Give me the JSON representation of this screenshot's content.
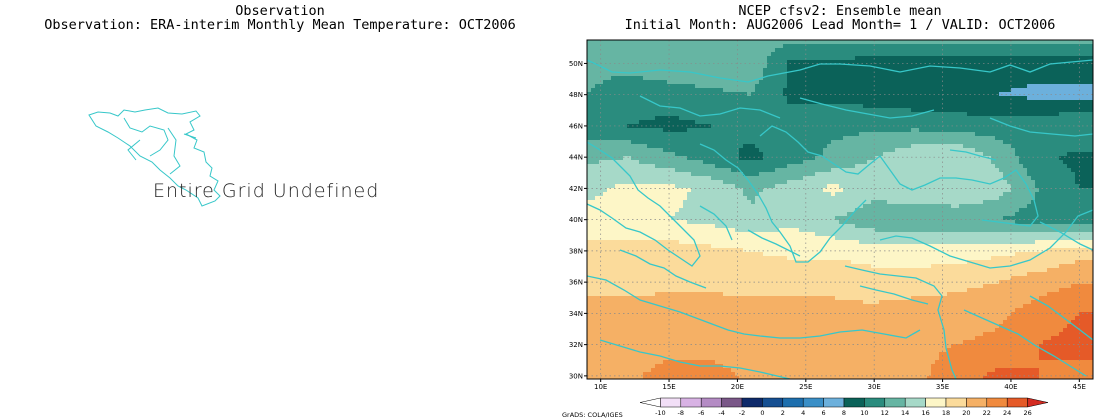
{
  "left_panel": {
    "title_line1": "Observation",
    "title_line2": "Observation: ERA-interim Monthly Mean Temperature: OCT2006",
    "message": "Entire Grid Undefined"
  },
  "right_panel": {
    "title_line1": "NCEP cfsv2: Ensemble mean",
    "title_line2": "Initial Month: AUG2006  Lead Month= 1 / VALID: OCT2006"
  },
  "credit": "GrADS: COLA/IGES",
  "colors": {
    "coastline": "#37c7c9",
    "frame": "#000000"
  },
  "chart_data": {
    "type": "heatmap",
    "title": "NCEP cfsv2: Ensemble mean",
    "subtitle": "Initial Month: AUG2006  Lead Month= 1 / VALID: OCT2006",
    "x_ticks": [
      "10E",
      "15E",
      "20E",
      "25E",
      "30E",
      "35E",
      "40E",
      "45E"
    ],
    "y_ticks": [
      "30N",
      "32N",
      "34N",
      "36N",
      "38N",
      "40N",
      "42N",
      "44N",
      "46N",
      "48N",
      "50N"
    ],
    "xlim": [
      9,
      46
    ],
    "ylim": [
      29.8,
      51.5
    ],
    "grid": true,
    "colorbar": {
      "levels": [
        "-10",
        "-8",
        "-6",
        "-4",
        "-2",
        "0",
        "2",
        "4",
        "6",
        "8",
        "10",
        "12",
        "14",
        "16",
        "18",
        "20",
        "22",
        "24",
        "26"
      ],
      "colors": [
        "#ffffff",
        "#f2dff7",
        "#d8b2e4",
        "#b48bc4",
        "#7a5788",
        "#0e2a6b",
        "#154f92",
        "#1d6fae",
        "#3a8fc7",
        "#6cb0dc",
        "#0b6259",
        "#2a8c7e",
        "#66b5a3",
        "#a6d9c8",
        "#fdf6c7",
        "#fbdb9b",
        "#f5b065",
        "#f08a3e",
        "#e55a28",
        "#d42b22"
      ]
    },
    "field_x": [
      9,
      12,
      15,
      18,
      21,
      24,
      27,
      30,
      33,
      36,
      39,
      42,
      45
    ],
    "field_y": [
      30,
      32,
      34,
      36,
      38,
      40,
      42,
      44,
      46,
      48,
      50,
      51.5
    ],
    "field": [
      [
        20.5,
        21.5,
        23,
        23,
        21.5,
        20.5,
        21.5,
        21.5,
        21.5,
        23,
        24.5,
        24,
        23.5
      ],
      [
        20.5,
        20.5,
        21,
        21,
        21,
        20.5,
        21,
        21.5,
        21.5,
        22,
        22.5,
        24,
        24.5
      ],
      [
        20.5,
        20.5,
        20.5,
        20.5,
        20.5,
        20.5,
        20.5,
        20.5,
        21,
        21,
        21.5,
        23,
        24
      ],
      [
        19.5,
        19.5,
        19.8,
        19.8,
        19.5,
        19.5,
        19.5,
        19,
        19,
        19.5,
        20,
        21,
        22
      ],
      [
        18.5,
        18.8,
        19,
        18.5,
        18,
        17.5,
        17.5,
        17,
        16.8,
        17,
        17.5,
        18,
        19
      ],
      [
        16.8,
        16.5,
        16,
        15.5,
        14.5,
        15.5,
        14,
        12.5,
        12.5,
        12.5,
        12,
        11,
        11
      ],
      [
        15.5,
        16.5,
        16.5,
        15.5,
        13.5,
        15,
        16.5,
        15,
        15.5,
        16,
        15,
        12,
        10
      ],
      [
        13.5,
        14,
        12.5,
        11,
        9.5,
        11,
        12.5,
        14,
        15.5,
        16,
        13.5,
        10.5,
        9.5
      ],
      [
        10.5,
        10,
        9.5,
        10,
        10.5,
        11,
        11.5,
        11.5,
        11.5,
        11,
        11,
        11,
        12
      ],
      [
        12,
        11,
        11,
        11.5,
        12,
        9.5,
        9.5,
        9,
        8.5,
        8.5,
        8,
        7.5,
        7.5
      ],
      [
        12.5,
        12.5,
        13.5,
        14,
        13.5,
        9.5,
        9.5,
        9,
        9,
        9,
        9,
        9,
        9
      ],
      [
        12.5,
        12.5,
        12.5,
        12.5,
        12.5,
        12.5,
        12.5,
        12.5,
        12.5,
        12.5,
        12.5,
        12.5,
        12.5
      ]
    ]
  }
}
